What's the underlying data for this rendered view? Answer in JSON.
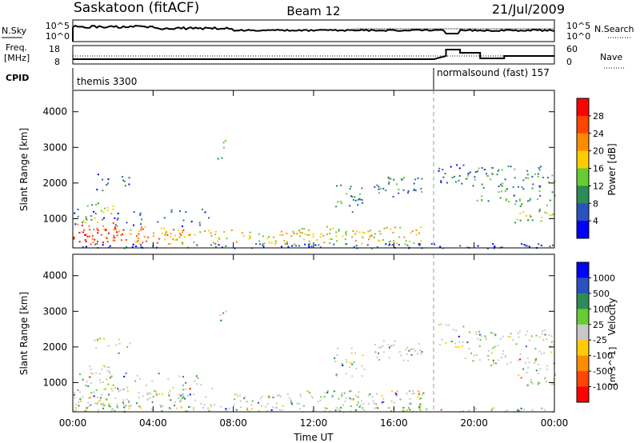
{
  "header": {
    "station": "Saskatoon (fitACF)",
    "beam": "Beam 12",
    "date": "21/Jul/2009"
  },
  "noise_panel": {
    "left_label": "N.Sky",
    "right_label": "N.Search",
    "left_ticks": [
      "10^5",
      "10^0"
    ],
    "right_ticks": [
      "10^5",
      "10^0"
    ]
  },
  "freq_panel": {
    "left_label_1": "Freq.",
    "left_label_2": "[MHz]",
    "right_label": "Nave",
    "left_ticks": [
      "18",
      "8"
    ],
    "right_ticks": [
      "60",
      "0"
    ]
  },
  "cpid_panel": {
    "label": "CPID",
    "modes": [
      {
        "name": "themis 3300",
        "start_hour": 0
      },
      {
        "name": "normalsound (fast) 157",
        "start_hour": 18
      }
    ]
  },
  "x_axis": {
    "label": "Time UT",
    "ticks": [
      "00:00",
      "04:00",
      "08:00",
      "12:00",
      "16:00",
      "20:00",
      "00:00"
    ]
  },
  "chart_data": [
    {
      "type": "heatmap",
      "name": "power",
      "ylabel": "Slant Range [km]",
      "yticks": [
        "1000",
        "2000",
        "3000",
        "4000"
      ],
      "ylim": [
        180,
        4600
      ],
      "xlim": [
        0,
        24
      ],
      "colorbar_title": "Power [dB]",
      "colorbar_ticks": [
        "4",
        "8",
        "12",
        "16",
        "20",
        "24",
        "28"
      ],
      "colors": [
        "#0000ff",
        "#2a52be",
        "#2e8b57",
        "#66cc33",
        "#ffcc00",
        "#ff8c00",
        "#ff4500",
        "#ff0000"
      ]
    },
    {
      "type": "heatmap",
      "name": "velocity",
      "ylabel": "Slant Range [km]",
      "yticks": [
        "1000",
        "2000",
        "3000",
        "4000"
      ],
      "ylim": [
        180,
        4600
      ],
      "xlim": [
        0,
        24
      ],
      "colorbar_title": "Velocity",
      "colorbar_unit": "[m s^-1]",
      "colorbar_ticks": [
        "1000",
        "500",
        "100",
        "25",
        "-25",
        "-100",
        "-500",
        "-1000"
      ],
      "colors": [
        "#0000ff",
        "#2a52be",
        "#2e8b57",
        "#66cc33",
        "#c8c8c8",
        "#ffcc00",
        "#ff8c00",
        "#ff4500",
        "#ff0000"
      ]
    }
  ]
}
